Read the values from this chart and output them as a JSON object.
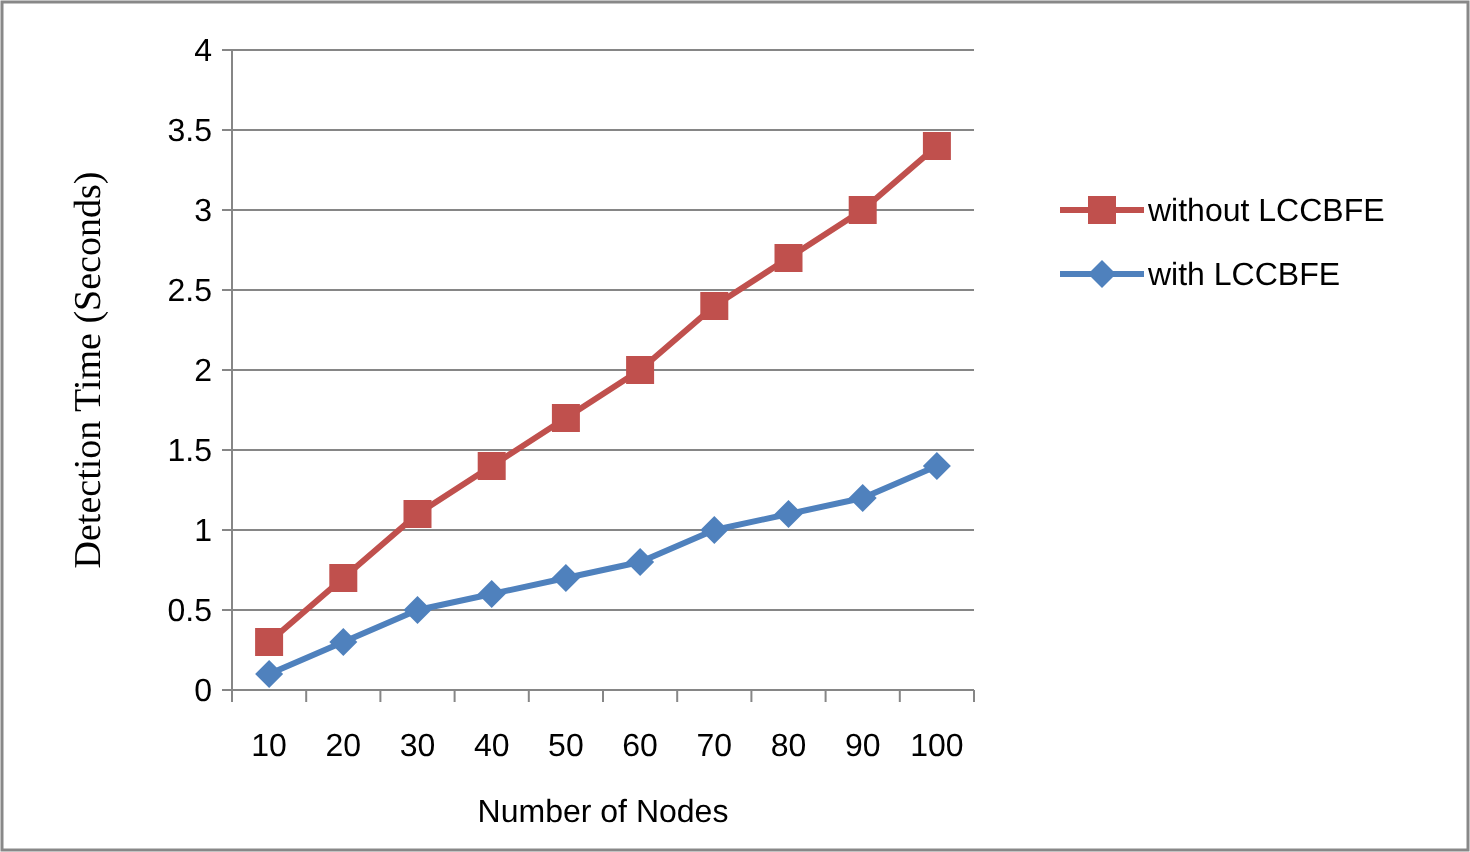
{
  "chart_data": {
    "type": "line",
    "xlabel": "Number of Nodes",
    "ylabel": "Detection Time (Seconds)",
    "categories": [
      "10",
      "20",
      "30",
      "40",
      "50",
      "60",
      "70",
      "80",
      "90",
      "100"
    ],
    "series": [
      {
        "name": "without LCCBFE",
        "color": "#c0504d",
        "marker": "square",
        "values": [
          0.3,
          0.7,
          1.1,
          1.4,
          1.7,
          2.0,
          2.4,
          2.7,
          3.0,
          3.4
        ]
      },
      {
        "name": "with LCCBFE",
        "color": "#4f81bd",
        "marker": "diamond",
        "values": [
          0.1,
          0.3,
          0.5,
          0.6,
          0.7,
          0.8,
          1.0,
          1.1,
          1.2,
          1.4
        ]
      }
    ],
    "ylim": [
      0,
      4
    ],
    "yticks": [
      0,
      0.5,
      1,
      1.5,
      2,
      2.5,
      3,
      3.5,
      4
    ],
    "grid": "y",
    "legend": "right"
  }
}
